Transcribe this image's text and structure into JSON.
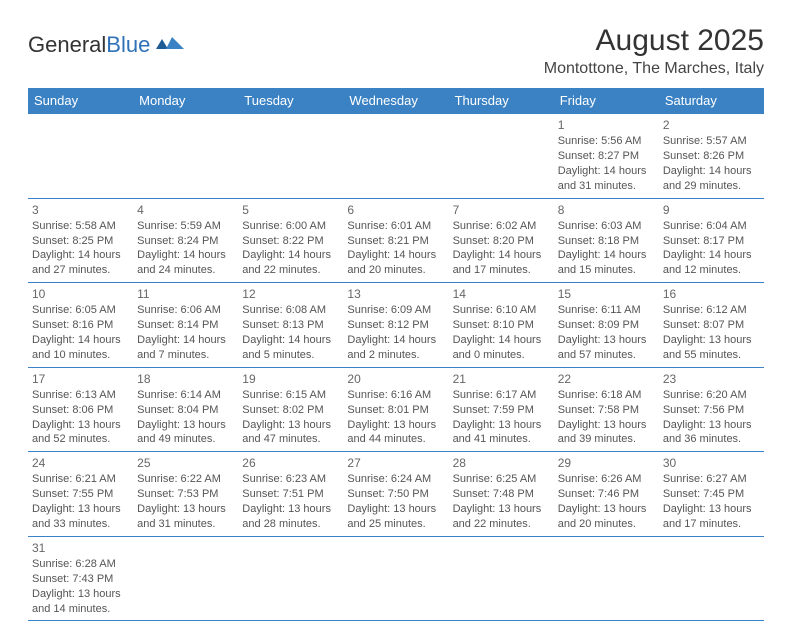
{
  "logo": {
    "part1": "General",
    "part2": "Blue"
  },
  "title": "August 2025",
  "location": "Montottone, The Marches, Italy",
  "headers": [
    "Sunday",
    "Monday",
    "Tuesday",
    "Wednesday",
    "Thursday",
    "Friday",
    "Saturday"
  ],
  "colors": {
    "header_bg": "#3b82c4",
    "header_fg": "#ffffff",
    "border": "#3b82c4",
    "text": "#555",
    "logo_blue": "#2f72b8"
  },
  "weeks": [
    [
      null,
      null,
      null,
      null,
      null,
      {
        "n": "1",
        "sr": "5:56 AM",
        "ss": "8:27 PM",
        "dl": "14 hours and 31 minutes."
      },
      {
        "n": "2",
        "sr": "5:57 AM",
        "ss": "8:26 PM",
        "dl": "14 hours and 29 minutes."
      }
    ],
    [
      {
        "n": "3",
        "sr": "5:58 AM",
        "ss": "8:25 PM",
        "dl": "14 hours and 27 minutes."
      },
      {
        "n": "4",
        "sr": "5:59 AM",
        "ss": "8:24 PM",
        "dl": "14 hours and 24 minutes."
      },
      {
        "n": "5",
        "sr": "6:00 AM",
        "ss": "8:22 PM",
        "dl": "14 hours and 22 minutes."
      },
      {
        "n": "6",
        "sr": "6:01 AM",
        "ss": "8:21 PM",
        "dl": "14 hours and 20 minutes."
      },
      {
        "n": "7",
        "sr": "6:02 AM",
        "ss": "8:20 PM",
        "dl": "14 hours and 17 minutes."
      },
      {
        "n": "8",
        "sr": "6:03 AM",
        "ss": "8:18 PM",
        "dl": "14 hours and 15 minutes."
      },
      {
        "n": "9",
        "sr": "6:04 AM",
        "ss": "8:17 PM",
        "dl": "14 hours and 12 minutes."
      }
    ],
    [
      {
        "n": "10",
        "sr": "6:05 AM",
        "ss": "8:16 PM",
        "dl": "14 hours and 10 minutes."
      },
      {
        "n": "11",
        "sr": "6:06 AM",
        "ss": "8:14 PM",
        "dl": "14 hours and 7 minutes."
      },
      {
        "n": "12",
        "sr": "6:08 AM",
        "ss": "8:13 PM",
        "dl": "14 hours and 5 minutes."
      },
      {
        "n": "13",
        "sr": "6:09 AM",
        "ss": "8:12 PM",
        "dl": "14 hours and 2 minutes."
      },
      {
        "n": "14",
        "sr": "6:10 AM",
        "ss": "8:10 PM",
        "dl": "14 hours and 0 minutes."
      },
      {
        "n": "15",
        "sr": "6:11 AM",
        "ss": "8:09 PM",
        "dl": "13 hours and 57 minutes."
      },
      {
        "n": "16",
        "sr": "6:12 AM",
        "ss": "8:07 PM",
        "dl": "13 hours and 55 minutes."
      }
    ],
    [
      {
        "n": "17",
        "sr": "6:13 AM",
        "ss": "8:06 PM",
        "dl": "13 hours and 52 minutes."
      },
      {
        "n": "18",
        "sr": "6:14 AM",
        "ss": "8:04 PM",
        "dl": "13 hours and 49 minutes."
      },
      {
        "n": "19",
        "sr": "6:15 AM",
        "ss": "8:02 PM",
        "dl": "13 hours and 47 minutes."
      },
      {
        "n": "20",
        "sr": "6:16 AM",
        "ss": "8:01 PM",
        "dl": "13 hours and 44 minutes."
      },
      {
        "n": "21",
        "sr": "6:17 AM",
        "ss": "7:59 PM",
        "dl": "13 hours and 41 minutes."
      },
      {
        "n": "22",
        "sr": "6:18 AM",
        "ss": "7:58 PM",
        "dl": "13 hours and 39 minutes."
      },
      {
        "n": "23",
        "sr": "6:20 AM",
        "ss": "7:56 PM",
        "dl": "13 hours and 36 minutes."
      }
    ],
    [
      {
        "n": "24",
        "sr": "6:21 AM",
        "ss": "7:55 PM",
        "dl": "13 hours and 33 minutes."
      },
      {
        "n": "25",
        "sr": "6:22 AM",
        "ss": "7:53 PM",
        "dl": "13 hours and 31 minutes."
      },
      {
        "n": "26",
        "sr": "6:23 AM",
        "ss": "7:51 PM",
        "dl": "13 hours and 28 minutes."
      },
      {
        "n": "27",
        "sr": "6:24 AM",
        "ss": "7:50 PM",
        "dl": "13 hours and 25 minutes."
      },
      {
        "n": "28",
        "sr": "6:25 AM",
        "ss": "7:48 PM",
        "dl": "13 hours and 22 minutes."
      },
      {
        "n": "29",
        "sr": "6:26 AM",
        "ss": "7:46 PM",
        "dl": "13 hours and 20 minutes."
      },
      {
        "n": "30",
        "sr": "6:27 AM",
        "ss": "7:45 PM",
        "dl": "13 hours and 17 minutes."
      }
    ],
    [
      {
        "n": "31",
        "sr": "6:28 AM",
        "ss": "7:43 PM",
        "dl": "13 hours and 14 minutes."
      },
      null,
      null,
      null,
      null,
      null,
      null
    ]
  ],
  "labels": {
    "sunrise": "Sunrise:",
    "sunset": "Sunset:",
    "daylight": "Daylight:"
  }
}
